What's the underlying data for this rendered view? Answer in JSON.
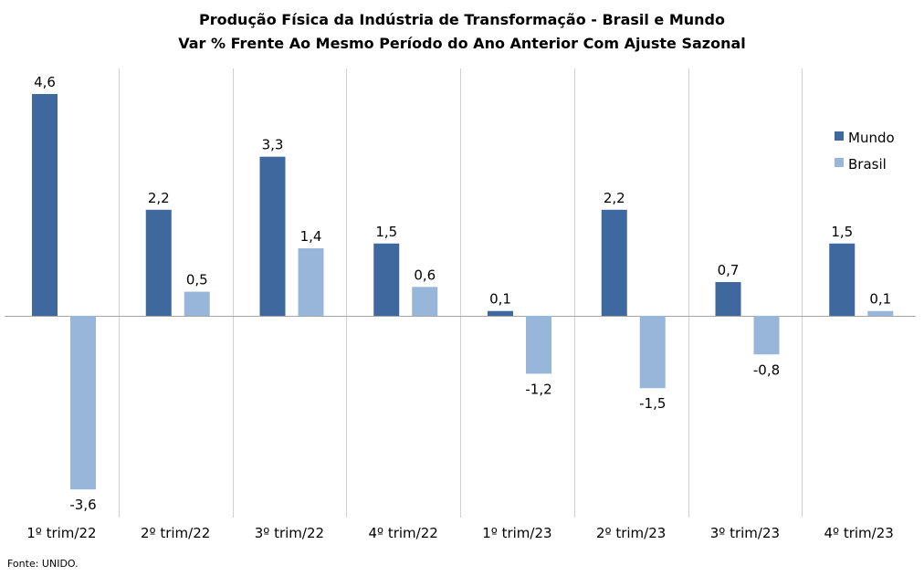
{
  "chart_data": {
    "type": "bar",
    "title": "Produção  Física da Indústria  de Transformação  - Brasil e Mundo",
    "subtitle": "Var % Frente Ao Mesmo Período do Ano Anterior Com Ajuste Sazonal",
    "categories": [
      "1º trim/22",
      "2º trim/22",
      "3º trim/22",
      "4º trim/22",
      "1º trim/23",
      "2º trim/23",
      "3º trim/23",
      "4º trim/23"
    ],
    "series": [
      {
        "name": "Mundo",
        "color": "#3f689e",
        "values": [
          4.6,
          2.2,
          3.3,
          1.5,
          0.1,
          2.2,
          0.7,
          1.5
        ],
        "labels": [
          "4,6",
          "2,2",
          "3,3",
          "1,5",
          "0,1",
          "2,2",
          "0,7",
          "1,5"
        ]
      },
      {
        "name": "Brasil",
        "color": "#98b6da",
        "values": [
          -3.6,
          0.5,
          1.4,
          0.6,
          -1.2,
          -1.5,
          -0.8,
          0.1
        ],
        "labels": [
          "-3,6",
          "0,5",
          "1,4",
          "0,6",
          "-1,2",
          "-1,5",
          "-0,8",
          "0,1"
        ]
      }
    ],
    "ylim": [
      -3.6,
      4.6
    ],
    "legend": "right",
    "grid": "vertical category separators",
    "xlabel": "",
    "ylabel": ""
  },
  "source": "Fonte: UNIDO."
}
